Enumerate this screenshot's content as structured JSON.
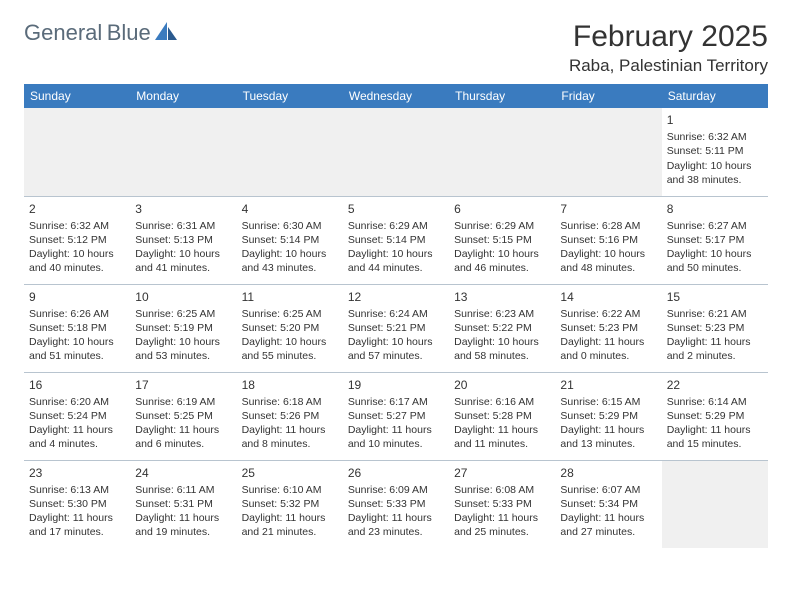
{
  "logo": {
    "line1": "General",
    "line2": "Blue"
  },
  "title": "February 2025",
  "location": "Raba, Palestinian Territory",
  "header_bg": "#3a7bbf",
  "days": [
    "Sunday",
    "Monday",
    "Tuesday",
    "Wednesday",
    "Thursday",
    "Friday",
    "Saturday"
  ],
  "weeks": [
    [
      null,
      null,
      null,
      null,
      null,
      null,
      {
        "num": "1",
        "sunrise": "Sunrise: 6:32 AM",
        "sunset": "Sunset: 5:11 PM",
        "daylight": "Daylight: 10 hours and 38 minutes."
      }
    ],
    [
      {
        "num": "2",
        "sunrise": "Sunrise: 6:32 AM",
        "sunset": "Sunset: 5:12 PM",
        "daylight": "Daylight: 10 hours and 40 minutes."
      },
      {
        "num": "3",
        "sunrise": "Sunrise: 6:31 AM",
        "sunset": "Sunset: 5:13 PM",
        "daylight": "Daylight: 10 hours and 41 minutes."
      },
      {
        "num": "4",
        "sunrise": "Sunrise: 6:30 AM",
        "sunset": "Sunset: 5:14 PM",
        "daylight": "Daylight: 10 hours and 43 minutes."
      },
      {
        "num": "5",
        "sunrise": "Sunrise: 6:29 AM",
        "sunset": "Sunset: 5:14 PM",
        "daylight": "Daylight: 10 hours and 44 minutes."
      },
      {
        "num": "6",
        "sunrise": "Sunrise: 6:29 AM",
        "sunset": "Sunset: 5:15 PM",
        "daylight": "Daylight: 10 hours and 46 minutes."
      },
      {
        "num": "7",
        "sunrise": "Sunrise: 6:28 AM",
        "sunset": "Sunset: 5:16 PM",
        "daylight": "Daylight: 10 hours and 48 minutes."
      },
      {
        "num": "8",
        "sunrise": "Sunrise: 6:27 AM",
        "sunset": "Sunset: 5:17 PM",
        "daylight": "Daylight: 10 hours and 50 minutes."
      }
    ],
    [
      {
        "num": "9",
        "sunrise": "Sunrise: 6:26 AM",
        "sunset": "Sunset: 5:18 PM",
        "daylight": "Daylight: 10 hours and 51 minutes."
      },
      {
        "num": "10",
        "sunrise": "Sunrise: 6:25 AM",
        "sunset": "Sunset: 5:19 PM",
        "daylight": "Daylight: 10 hours and 53 minutes."
      },
      {
        "num": "11",
        "sunrise": "Sunrise: 6:25 AM",
        "sunset": "Sunset: 5:20 PM",
        "daylight": "Daylight: 10 hours and 55 minutes."
      },
      {
        "num": "12",
        "sunrise": "Sunrise: 6:24 AM",
        "sunset": "Sunset: 5:21 PM",
        "daylight": "Daylight: 10 hours and 57 minutes."
      },
      {
        "num": "13",
        "sunrise": "Sunrise: 6:23 AM",
        "sunset": "Sunset: 5:22 PM",
        "daylight": "Daylight: 10 hours and 58 minutes."
      },
      {
        "num": "14",
        "sunrise": "Sunrise: 6:22 AM",
        "sunset": "Sunset: 5:23 PM",
        "daylight": "Daylight: 11 hours and 0 minutes."
      },
      {
        "num": "15",
        "sunrise": "Sunrise: 6:21 AM",
        "sunset": "Sunset: 5:23 PM",
        "daylight": "Daylight: 11 hours and 2 minutes."
      }
    ],
    [
      {
        "num": "16",
        "sunrise": "Sunrise: 6:20 AM",
        "sunset": "Sunset: 5:24 PM",
        "daylight": "Daylight: 11 hours and 4 minutes."
      },
      {
        "num": "17",
        "sunrise": "Sunrise: 6:19 AM",
        "sunset": "Sunset: 5:25 PM",
        "daylight": "Daylight: 11 hours and 6 minutes."
      },
      {
        "num": "18",
        "sunrise": "Sunrise: 6:18 AM",
        "sunset": "Sunset: 5:26 PM",
        "daylight": "Daylight: 11 hours and 8 minutes."
      },
      {
        "num": "19",
        "sunrise": "Sunrise: 6:17 AM",
        "sunset": "Sunset: 5:27 PM",
        "daylight": "Daylight: 11 hours and 10 minutes."
      },
      {
        "num": "20",
        "sunrise": "Sunrise: 6:16 AM",
        "sunset": "Sunset: 5:28 PM",
        "daylight": "Daylight: 11 hours and 11 minutes."
      },
      {
        "num": "21",
        "sunrise": "Sunrise: 6:15 AM",
        "sunset": "Sunset: 5:29 PM",
        "daylight": "Daylight: 11 hours and 13 minutes."
      },
      {
        "num": "22",
        "sunrise": "Sunrise: 6:14 AM",
        "sunset": "Sunset: 5:29 PM",
        "daylight": "Daylight: 11 hours and 15 minutes."
      }
    ],
    [
      {
        "num": "23",
        "sunrise": "Sunrise: 6:13 AM",
        "sunset": "Sunset: 5:30 PM",
        "daylight": "Daylight: 11 hours and 17 minutes."
      },
      {
        "num": "24",
        "sunrise": "Sunrise: 6:11 AM",
        "sunset": "Sunset: 5:31 PM",
        "daylight": "Daylight: 11 hours and 19 minutes."
      },
      {
        "num": "25",
        "sunrise": "Sunrise: 6:10 AM",
        "sunset": "Sunset: 5:32 PM",
        "daylight": "Daylight: 11 hours and 21 minutes."
      },
      {
        "num": "26",
        "sunrise": "Sunrise: 6:09 AM",
        "sunset": "Sunset: 5:33 PM",
        "daylight": "Daylight: 11 hours and 23 minutes."
      },
      {
        "num": "27",
        "sunrise": "Sunrise: 6:08 AM",
        "sunset": "Sunset: 5:33 PM",
        "daylight": "Daylight: 11 hours and 25 minutes."
      },
      {
        "num": "28",
        "sunrise": "Sunrise: 6:07 AM",
        "sunset": "Sunset: 5:34 PM",
        "daylight": "Daylight: 11 hours and 27 minutes."
      },
      null
    ]
  ]
}
